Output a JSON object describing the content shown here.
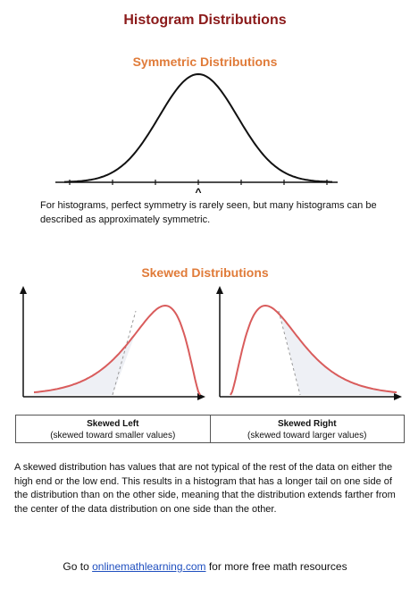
{
  "title": "Histogram Distributions",
  "symmetric": {
    "heading": "Symmetric Distributions",
    "center_marker": "^",
    "text": "For histograms, perfect symmetry is rarely seen, but many histograms can be described as approximately symmetric."
  },
  "skewed": {
    "heading": "Skewed Distributions",
    "left": {
      "label": "Skewed Left",
      "sublabel": "(skewed toward smaller values)"
    },
    "right": {
      "label": "Skewed Right",
      "sublabel": "(skewed toward larger values)"
    },
    "text": "A skewed distribution has values that are not typical of the rest of the data on either the high end or the low end. This results in a histogram that has a longer tail on one side of the distribution than on the other side, meaning that the distribution extends farther from the center of the data distribution on one side than the other."
  },
  "footer": {
    "prefix": "Go to ",
    "link_text": "onlinemathlearning.com",
    "suffix": " for more free math resources"
  },
  "colors": {
    "title": "#8b1a1a",
    "section_heading": "#e07b39",
    "skew_curve": "#d95c5c",
    "link": "#1f4fbf"
  }
}
